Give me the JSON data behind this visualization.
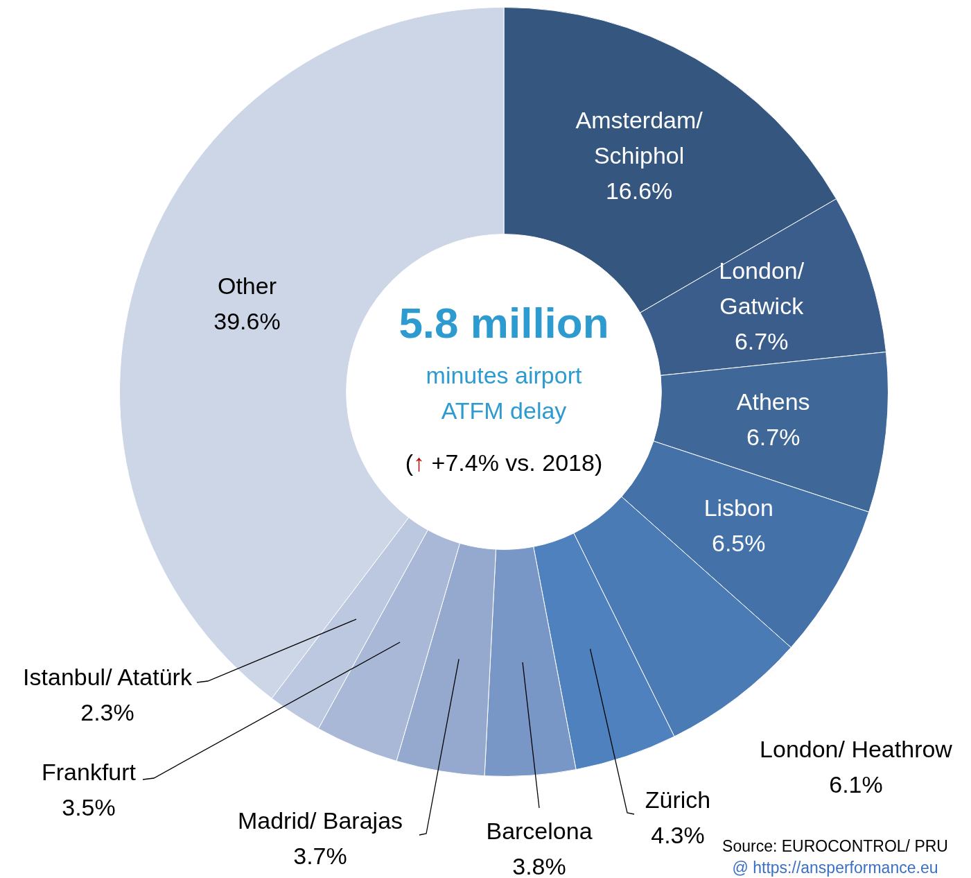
{
  "chart_data": {
    "type": "donut",
    "title": "5.8 million",
    "subtitle": "minutes airport\nATFM delay",
    "categories": [
      "Amsterdam/\nSchiphol",
      "London/\nGatwick",
      "Athens",
      "Lisbon",
      "London/ Heathrow",
      "Zürich",
      "Barcelona",
      "Madrid/ Barajas",
      "Frankfurt",
      "Istanbul/ Atatürk",
      "Other"
    ],
    "values": [
      16.6,
      6.7,
      6.7,
      6.5,
      6.1,
      4.3,
      3.8,
      3.7,
      3.5,
      2.3,
      39.6
    ],
    "value_labels": [
      "16.6%",
      "6.7%",
      "6.7%",
      "6.5%",
      "6.1%",
      "4.3%",
      "3.8%",
      "3.7%",
      "3.5%",
      "2.3%",
      "39.6%"
    ],
    "colors": [
      "#34567f",
      "#3a5d8c",
      "#3f6899",
      "#4472a8",
      "#4a7bb5",
      "#4e81bd",
      "#7896c6",
      "#95a9cf",
      "#a9b8d7",
      "#bcc8e0",
      "#cdd6e7"
    ],
    "annotations": [
      "(↑ +7.4% vs. 2018)",
      "Source: EUROCONTROL/ PRU",
      "@ https://ansperformance.eu"
    ],
    "legend": false
  }
}
